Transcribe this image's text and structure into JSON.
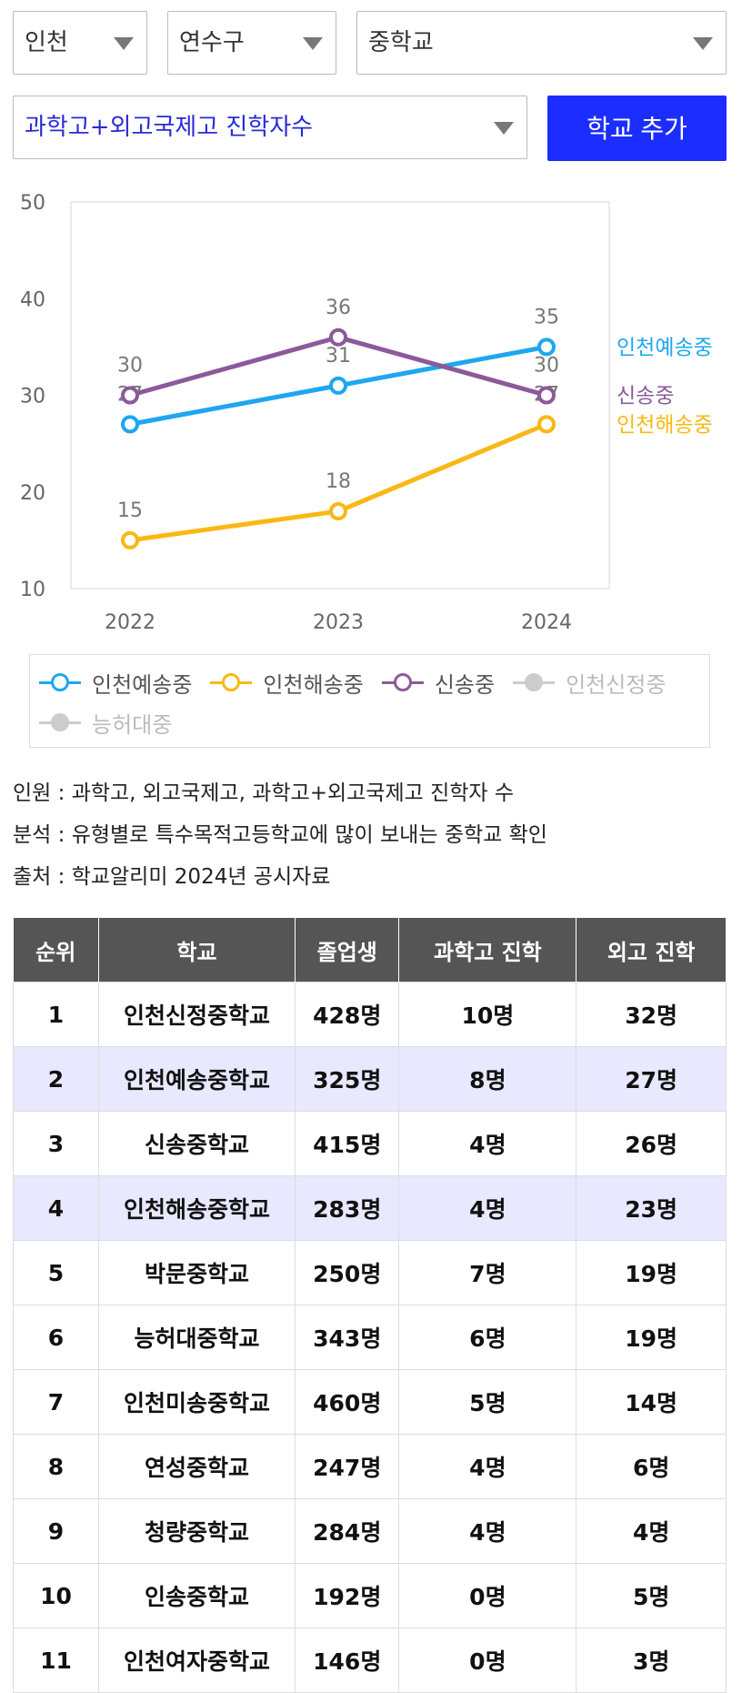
{
  "filters": {
    "region": "인천",
    "district": "연수구",
    "level": "중학교",
    "metric": "과학고+외고국제고 진학자수",
    "add_button": "학교 추가"
  },
  "chart_data": {
    "type": "line",
    "x": [
      "2022",
      "2023",
      "2024"
    ],
    "ylim": [
      10,
      50
    ],
    "yticks": [
      "10",
      "20",
      "30",
      "40",
      "50"
    ],
    "series": [
      {
        "name": "인천예송중",
        "color": "#1ea7f0",
        "values": [
          27,
          31,
          35
        ]
      },
      {
        "name": "인천해송중",
        "color": "#f9b815",
        "values": [
          15,
          18,
          27
        ]
      },
      {
        "name": "신송중",
        "color": "#8b5a9b",
        "values": [
          30,
          36,
          30
        ]
      }
    ]
  },
  "legend": [
    {
      "name": "인천예송중",
      "color": "#1ea7f0",
      "active": true
    },
    {
      "name": "인천해송중",
      "color": "#f9b815",
      "active": true
    },
    {
      "name": "신송중",
      "color": "#8b5a9b",
      "active": true
    },
    {
      "name": "인천신정중",
      "color": "#cccccc",
      "active": false
    },
    {
      "name": "능허대중",
      "color": "#cccccc",
      "active": false
    }
  ],
  "notes": {
    "line1": "인원 : 과학고, 외고국제고, 과학고+외고국제고 진학자 수",
    "line2": "분석 : 유형별로 특수목적고등학교에 많이 보내는 중학교 확인",
    "line3": "출처 : 학교알리미 2024년 공시자료"
  },
  "table": {
    "headers": [
      "순위",
      "학교",
      "졸업생",
      "과학고 진학",
      "외고 진학"
    ],
    "rows": [
      [
        "1",
        "인천신정중학교",
        "428명",
        "10명",
        "32명"
      ],
      [
        "2",
        "인천예송중학교",
        "325명",
        "8명",
        "27명"
      ],
      [
        "3",
        "신송중학교",
        "415명",
        "4명",
        "26명"
      ],
      [
        "4",
        "인천해송중학교",
        "283명",
        "4명",
        "23명"
      ],
      [
        "5",
        "박문중학교",
        "250명",
        "7명",
        "19명"
      ],
      [
        "6",
        "능허대중학교",
        "343명",
        "6명",
        "19명"
      ],
      [
        "7",
        "인천미송중학교",
        "460명",
        "5명",
        "14명"
      ],
      [
        "8",
        "연성중학교",
        "247명",
        "4명",
        "6명"
      ],
      [
        "9",
        "청량중학교",
        "284명",
        "4명",
        "4명"
      ],
      [
        "10",
        "인송중학교",
        "192명",
        "0명",
        "5명"
      ],
      [
        "11",
        "인천여자중학교",
        "146명",
        "0명",
        "3명"
      ]
    ],
    "highlighted_rows": [
      1,
      3
    ]
  }
}
